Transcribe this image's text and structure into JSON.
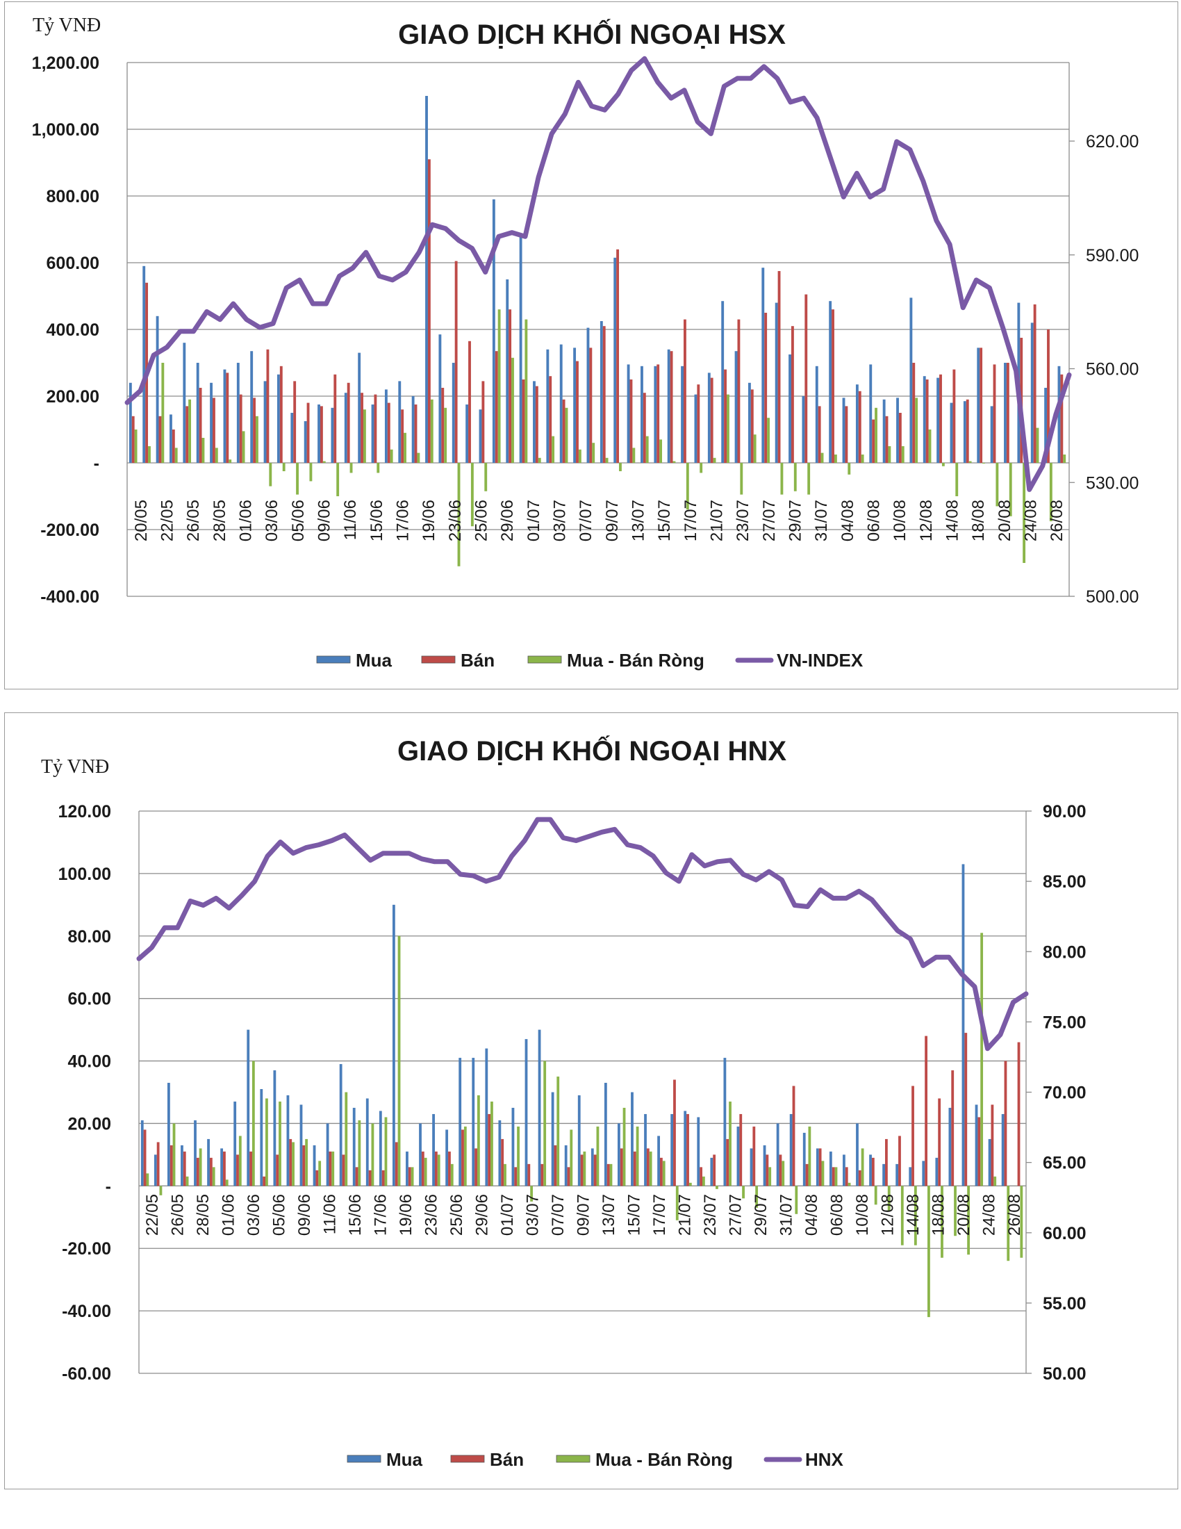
{
  "chart_data": [
    {
      "type": "bar",
      "title": "GIAO DỊCH KHỐI NGOẠI HSX",
      "ylabel": "Tỷ VNĐ",
      "ylim": [
        -400,
        1200
      ],
      "y_ticks": [
        "1,200.00",
        "1,000.00",
        "800.00",
        "600.00",
        "400.00",
        "200.00",
        "-",
        "-200.00",
        "-400.00"
      ],
      "y2lim": [
        500,
        635
      ],
      "y2_ticks": [
        "620.00",
        "590.00",
        "560.00",
        "530.00",
        "500.00"
      ],
      "grid": true,
      "legend_position": "bottom",
      "x_tick_labels": [
        "20/05",
        "22/05",
        "26/05",
        "28/05",
        "01/06",
        "03/06",
        "05/06",
        "09/06",
        "11/06",
        "15/06",
        "17/06",
        "19/06",
        "23/06",
        "25/06",
        "29/06",
        "01/07",
        "03/07",
        "07/07",
        "09/07",
        "13/07",
        "15/07",
        "17/07",
        "21/07",
        "23/07",
        "27/07",
        "29/07",
        "31/07",
        "04/08",
        "06/08",
        "10/08",
        "12/08",
        "14/08",
        "18/08",
        "20/08",
        "24/08",
        "26/08"
      ],
      "colors": {
        "buy": "#4a7ebb",
        "sell": "#be4b48",
        "net": "#8bb54a",
        "index": "#7a5aa6"
      },
      "series": [
        {
          "name": "Mua",
          "values": [
            240,
            590,
            440,
            145,
            360,
            300,
            240,
            280,
            300,
            335,
            245,
            265,
            150,
            125,
            175,
            165,
            210,
            330,
            175,
            220,
            245,
            200,
            1100,
            385,
            300,
            175,
            160,
            790,
            550,
            680,
            245,
            340,
            355,
            345,
            405,
            425,
            615,
            295,
            290,
            290,
            340,
            290,
            205,
            270,
            485,
            335,
            240,
            585,
            480,
            325,
            200,
            290,
            485,
            195,
            235,
            295,
            190,
            195,
            495,
            260,
            255,
            180,
            185,
            345,
            170,
            300,
            480,
            420,
            225,
            290
          ]
        },
        {
          "name": "Bán",
          "values": [
            140,
            540,
            140,
            100,
            170,
            225,
            195,
            270,
            205,
            195,
            340,
            290,
            245,
            180,
            170,
            265,
            240,
            210,
            205,
            180,
            160,
            175,
            910,
            225,
            605,
            365,
            245,
            335,
            460,
            250,
            230,
            260,
            190,
            305,
            345,
            410,
            640,
            250,
            210,
            295,
            335,
            430,
            235,
            255,
            280,
            430,
            220,
            450,
            575,
            410,
            505,
            170,
            460,
            170,
            215,
            130,
            140,
            150,
            300,
            250,
            265,
            280,
            190,
            345,
            295,
            300,
            375,
            475,
            400,
            265
          ]
        },
        {
          "name": "Mua - Bán Ròng",
          "values": [
            100,
            50,
            300,
            45,
            190,
            75,
            45,
            10,
            95,
            140,
            -70,
            -25,
            -95,
            -55,
            5,
            -100,
            -30,
            160,
            -30,
            40,
            90,
            30,
            190,
            165,
            -310,
            -190,
            -85,
            460,
            315,
            430,
            15,
            80,
            165,
            40,
            60,
            15,
            -25,
            45,
            80,
            70,
            5,
            -140,
            -30,
            15,
            205,
            -95,
            85,
            135,
            -95,
            -85,
            -95,
            30,
            25,
            -35,
            25,
            165,
            50,
            50,
            195,
            100,
            -10,
            -100,
            5,
            0,
            -130,
            -160,
            -300,
            105,
            -175,
            25
          ]
        },
        {
          "name": "VN-INDEX",
          "values": [
            549,
            552,
            561,
            563,
            567,
            567,
            572,
            570,
            574,
            570,
            568,
            569,
            578,
            580,
            574,
            574,
            581,
            583,
            587,
            581,
            580,
            582,
            587,
            594,
            593,
            590,
            588,
            582,
            591,
            592,
            591,
            606,
            617,
            622,
            630,
            624,
            623,
            627,
            633,
            636,
            630,
            626,
            628,
            620,
            617,
            629,
            631,
            631,
            634,
            631,
            625,
            626,
            621,
            611,
            601,
            607,
            601,
            603,
            615,
            613,
            605,
            595,
            589,
            573,
            580,
            578,
            568,
            557,
            527,
            533,
            546,
            556
          ]
        }
      ]
    },
    {
      "type": "bar",
      "title": "GIAO DỊCH KHỐI NGOẠI HNX",
      "ylabel": "Tỷ VNĐ",
      "ylim": [
        -60,
        120
      ],
      "y_ticks": [
        "120.00",
        "100.00",
        "80.00",
        "60.00",
        "40.00",
        "20.00",
        "-",
        "-20.00",
        "-40.00",
        "-60.00"
      ],
      "y2lim": [
        50,
        90
      ],
      "y2_ticks": [
        "90.00",
        "85.00",
        "80.00",
        "75.00",
        "70.00",
        "65.00",
        "60.00",
        "55.00",
        "50.00"
      ],
      "grid": true,
      "legend_position": "bottom",
      "x_tick_labels": [
        "22/05",
        "26/05",
        "28/05",
        "01/06",
        "03/06",
        "05/06",
        "09/06",
        "11/06",
        "15/06",
        "17/06",
        "19/06",
        "23/06",
        "25/06",
        "29/06",
        "01/07",
        "03/07",
        "07/07",
        "09/07",
        "13/07",
        "15/07",
        "17/07",
        "21/07",
        "23/07",
        "27/07",
        "29/07",
        "31/07",
        "04/08",
        "06/08",
        "10/08",
        "12/08",
        "14/08",
        "18/08",
        "20/08",
        "24/08",
        "26/08"
      ],
      "colors": {
        "buy": "#4a7ebb",
        "sell": "#be4b48",
        "net": "#8bb54a",
        "index": "#7a5aa6"
      },
      "series": [
        {
          "name": "Mua",
          "values": [
            21,
            10,
            33,
            13,
            21,
            15,
            12,
            27,
            50,
            31,
            37,
            29,
            26,
            13,
            20,
            39,
            25,
            28,
            24,
            90,
            11,
            20,
            23,
            18,
            41,
            41,
            44,
            21,
            25,
            47,
            50,
            30,
            13,
            29,
            12,
            33,
            20,
            30,
            23,
            16,
            23,
            24,
            22,
            9,
            41,
            19,
            12,
            13,
            20,
            23,
            17,
            12,
            11,
            10,
            20,
            10,
            7,
            7,
            6,
            8,
            9,
            25,
            103,
            26,
            15,
            23
          ]
        },
        {
          "name": "Bán",
          "values": [
            18,
            14,
            13,
            11,
            9,
            9,
            11,
            10,
            11,
            3,
            10,
            15,
            13,
            5,
            11,
            10,
            6,
            5,
            5,
            14,
            6,
            11,
            11,
            11,
            18,
            12,
            23,
            15,
            6,
            7,
            7,
            13,
            6,
            10,
            10,
            7,
            12,
            11,
            12,
            9,
            34,
            23,
            6,
            10,
            15,
            23,
            19,
            10,
            10,
            32,
            7,
            12,
            6,
            6,
            5,
            9,
            15,
            16,
            32,
            48,
            28,
            37,
            49,
            22,
            26,
            40,
            46
          ]
        },
        {
          "name": "Mua - Bán Ròng",
          "values": [
            4,
            -3,
            20,
            3,
            12,
            6,
            2,
            16,
            40,
            28,
            27,
            14,
            15,
            8,
            11,
            30,
            21,
            20,
            22,
            80,
            6,
            9,
            10,
            7,
            19,
            29,
            27,
            7,
            19,
            -5,
            40,
            35,
            18,
            11,
            19,
            7,
            25,
            19,
            11,
            8,
            -11,
            1,
            3,
            -1,
            27,
            -4,
            -7,
            6,
            8,
            -9,
            19,
            8,
            6,
            1,
            12,
            -6,
            -8,
            -19,
            -19,
            -42,
            -23,
            -16,
            -22,
            81,
            3,
            -24,
            -23
          ]
        },
        {
          "name": "HNX",
          "values": [
            79.5,
            80.3,
            81.7,
            81.7,
            83.6,
            83.3,
            83.8,
            83.1,
            84.0,
            85.0,
            86.8,
            87.8,
            87.0,
            87.4,
            87.6,
            87.9,
            88.3,
            87.4,
            86.5,
            87.0,
            87.0,
            87.0,
            86.6,
            86.4,
            86.4,
            85.5,
            85.4,
            85.0,
            85.3,
            86.8,
            87.9,
            89.4,
            89.4,
            88.1,
            87.9,
            88.2,
            88.5,
            88.7,
            87.6,
            87.4,
            86.8,
            85.6,
            85.0,
            86.9,
            86.1,
            86.4,
            86.5,
            85.5,
            85.1,
            85.7,
            85.1,
            83.3,
            83.2,
            84.4,
            83.8,
            83.8,
            84.3,
            83.7,
            82.6,
            81.5,
            80.9,
            79.0,
            79.6,
            79.6,
            78.4,
            77.5,
            73.1,
            74.1,
            76.4,
            77.0
          ]
        }
      ]
    }
  ]
}
